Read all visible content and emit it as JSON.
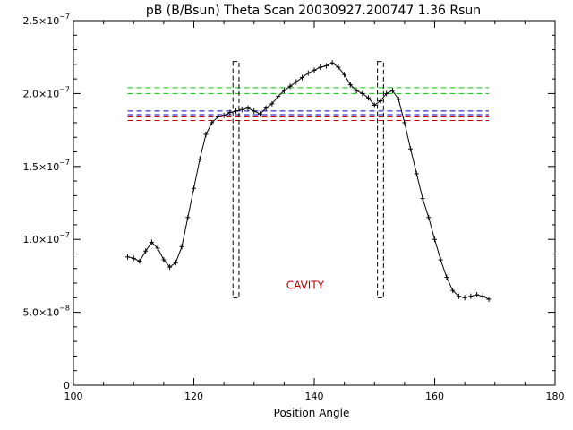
{
  "chart_data": {
    "type": "line",
    "title": "pB (B/Bsun) Theta Scan 20030927.200747 1.36 Rsun",
    "xlabel": "Position Angle",
    "ylabel": "",
    "xlim": [
      100,
      180
    ],
    "ylim": [
      0,
      2.5e-07
    ],
    "grid": false,
    "x_ticks": [
      {
        "value": 100,
        "label": "100"
      },
      {
        "value": 120,
        "label": "120"
      },
      {
        "value": 140,
        "label": "140"
      },
      {
        "value": 160,
        "label": "160"
      },
      {
        "value": 180,
        "label": "180"
      }
    ],
    "y_ticks": [
      {
        "value": 0,
        "mant": "0",
        "exp": ""
      },
      {
        "value": 5e-08,
        "mant": "5.0×10",
        "exp": "−8"
      },
      {
        "value": 1e-07,
        "mant": "1.0×10",
        "exp": "−7"
      },
      {
        "value": 1.5e-07,
        "mant": "1.5×10",
        "exp": "−7"
      },
      {
        "value": 2e-07,
        "mant": "2.0×10",
        "exp": "−7"
      },
      {
        "value": 2.5e-07,
        "mant": "2.5×10",
        "exp": "−7"
      }
    ],
    "series": [
      {
        "color": "#000000",
        "x": [
          109,
          110,
          111,
          112,
          113,
          114,
          115,
          116,
          117,
          118,
          119,
          120,
          121,
          122,
          123,
          124,
          125,
          126,
          127,
          128,
          129,
          130,
          131,
          132,
          133,
          134,
          135,
          136,
          137,
          138,
          139,
          140,
          141,
          142,
          143,
          144,
          145,
          146,
          147,
          148,
          149,
          150,
          151,
          152,
          153,
          154,
          155,
          156,
          157,
          158,
          159,
          160,
          161,
          162,
          163,
          164,
          165,
          166,
          167,
          168,
          169
        ],
        "y": [
          8.8e-08,
          8.7e-08,
          8.5e-08,
          9.2e-08,
          9.8e-08,
          9.4e-08,
          8.6e-08,
          8.1e-08,
          8.4e-08,
          9.5e-08,
          1.15e-07,
          1.35e-07,
          1.55e-07,
          1.72e-07,
          1.8e-07,
          1.84e-07,
          1.85e-07,
          1.87e-07,
          1.88e-07,
          1.89e-07,
          1.9e-07,
          1.88e-07,
          1.86e-07,
          1.9e-07,
          1.93e-07,
          1.98e-07,
          2.02e-07,
          2.05e-07,
          2.08e-07,
          2.11e-07,
          2.14e-07,
          2.16e-07,
          2.18e-07,
          2.19e-07,
          2.21e-07,
          2.18e-07,
          2.13e-07,
          2.06e-07,
          2.02e-07,
          2e-07,
          1.97e-07,
          1.92e-07,
          1.95e-07,
          2e-07,
          2.02e-07,
          1.96e-07,
          1.8e-07,
          1.62e-07,
          1.45e-07,
          1.28e-07,
          1.15e-07,
          1e-07,
          8.6e-08,
          7.4e-08,
          6.5e-08,
          6.1e-08,
          6e-08,
          6.1e-08,
          6.2e-08,
          6.1e-08,
          5.9e-08
        ]
      }
    ],
    "hlines": [
      {
        "y": 2.04e-07,
        "color": "#00cc00"
      },
      {
        "y": 2e-07,
        "color": "#00cc00"
      },
      {
        "y": 1.88e-07,
        "color": "#0000cc"
      },
      {
        "y": 1.855e-07,
        "color": "#0000cc"
      },
      {
        "y": 1.84e-07,
        "color": "#cc0000"
      },
      {
        "y": 1.815e-07,
        "color": "#cc0000"
      }
    ],
    "hline_range": [
      109,
      169
    ],
    "boxes": [
      {
        "x0": 126.5,
        "x1": 127.5,
        "y0": 6e-08,
        "y1": 2.22e-07
      },
      {
        "x0": 150.5,
        "x1": 151.5,
        "y0": 6e-08,
        "y1": 2.22e-07
      }
    ],
    "annotations": [
      {
        "text": "CAVITY",
        "x": 138.5,
        "y": 6.6e-08,
        "color": "#cc0000"
      }
    ]
  }
}
